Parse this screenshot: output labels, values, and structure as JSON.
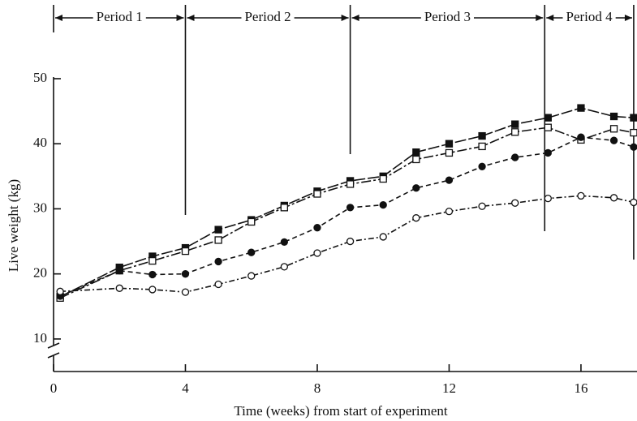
{
  "chart_data": {
    "type": "line",
    "x_label": "Time (weeks) from start of experiment",
    "y_label": "Live weight (kg)",
    "x": [
      0.2,
      2,
      3,
      4,
      5,
      6,
      7,
      8,
      9,
      10,
      11,
      12,
      13,
      14,
      15,
      16,
      17,
      17.6
    ],
    "series": [
      {
        "color": "#111111",
        "marker": "filled-square",
        "line_style": "long-dash",
        "values": [
          16.5,
          21,
          22.7,
          24,
          26.8,
          28.3,
          30.5,
          32.7,
          34.3,
          35,
          38.7,
          40,
          41.2,
          43,
          44,
          45.5,
          44.2,
          44
        ]
      },
      {
        "color": "#111111",
        "marker": "open-square",
        "line_style": "dash-dot-long",
        "values": [
          16.3,
          20.5,
          22,
          23.5,
          25.2,
          28,
          30.2,
          32.3,
          33.8,
          34.6,
          37.6,
          38.6,
          39.6,
          41.8,
          42.5,
          40.6,
          42.3,
          41.7
        ]
      },
      {
        "color": "#111111",
        "marker": "filled-circle",
        "line_style": "dashed",
        "values": [
          16.6,
          20.5,
          19.9,
          20,
          21.9,
          23.3,
          24.9,
          27.1,
          30.2,
          30.6,
          33.2,
          34.4,
          36.5,
          37.9,
          38.6,
          41,
          40.5,
          39.5
        ]
      },
      {
        "color": "#111111",
        "marker": "open-circle",
        "line_style": "dash-dot",
        "values": [
          17.3,
          17.8,
          17.6,
          17.2,
          18.4,
          19.7,
          21.1,
          23.2,
          25,
          25.7,
          28.6,
          29.6,
          30.4,
          30.9,
          31.6,
          32,
          31.7,
          31
        ]
      }
    ],
    "periods": [
      {
        "label": "Period 1",
        "start": 0,
        "end": 4
      },
      {
        "label": "Period 2",
        "start": 4,
        "end": 9
      },
      {
        "label": "Period 3",
        "start": 9,
        "end": 14.9
      },
      {
        "label": "Period 4",
        "start": 14.9,
        "end": 17.6
      }
    ],
    "xlim": [
      0,
      17.7
    ],
    "xticks": [
      0,
      4,
      8,
      12,
      16
    ],
    "ylim": [
      5,
      50
    ],
    "yticks": [
      10,
      20,
      30,
      40,
      50
    ],
    "y_axis_break": true
  }
}
